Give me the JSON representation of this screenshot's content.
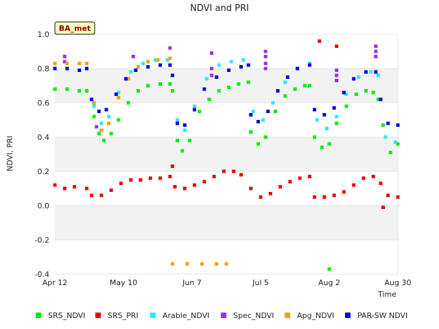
{
  "chart_data": {
    "type": "scatter",
    "title": "NDVI and PRI",
    "badge": "BA_met",
    "xlabel": "Time",
    "ylabel": "NDVI, PRI",
    "x_range": [
      "2024-04-12",
      "2024-08-30"
    ],
    "ylim": [
      -0.4,
      1.0
    ],
    "yticks": [
      -0.4,
      -0.2,
      0.0,
      0.2,
      0.4,
      0.6,
      0.8,
      1.0
    ],
    "ytick_labels": [
      "-0.4",
      "-0.2",
      "0.0",
      "0.2",
      "0.4",
      "0.6",
      "0.8",
      "1.0"
    ],
    "xticks": [
      "2024-04-12",
      "2024-05-10",
      "2024-06-07",
      "2024-07-05",
      "2024-08-02",
      "2024-08-30"
    ],
    "xtick_labels": [
      "Apr 12",
      "May 10",
      "Jun 7",
      "Jul 5",
      "Aug 2",
      "Aug 30"
    ],
    "grid": "horizontal bands",
    "legend_position": "bottom",
    "series": [
      {
        "name": "SRS_NDVI",
        "color": "#00ee00",
        "points": [
          [
            "2024-04-12",
            0.68
          ],
          [
            "2024-04-17",
            0.68
          ],
          [
            "2024-04-22",
            0.67
          ],
          [
            "2024-04-25",
            0.67
          ],
          [
            "2024-04-28",
            0.52
          ],
          [
            "2024-04-30",
            0.42
          ],
          [
            "2024-05-02",
            0.38
          ],
          [
            "2024-05-05",
            0.42
          ],
          [
            "2024-05-08",
            0.5
          ],
          [
            "2024-05-12",
            0.6
          ],
          [
            "2024-05-16",
            0.67
          ],
          [
            "2024-05-20",
            0.7
          ],
          [
            "2024-05-25",
            0.71
          ],
          [
            "2024-05-29",
            0.71
          ],
          [
            "2024-05-30",
            0.67
          ],
          [
            "2024-06-01",
            0.38
          ],
          [
            "2024-06-03",
            0.32
          ],
          [
            "2024-06-06",
            0.38
          ],
          [
            "2024-06-10",
            0.55
          ],
          [
            "2024-06-14",
            0.62
          ],
          [
            "2024-06-18",
            0.67
          ],
          [
            "2024-06-22",
            0.69
          ],
          [
            "2024-06-26",
            0.71
          ],
          [
            "2024-06-30",
            0.72
          ],
          [
            "2024-07-01",
            0.43
          ],
          [
            "2024-07-04",
            0.36
          ],
          [
            "2024-07-07",
            0.4
          ],
          [
            "2024-07-11",
            0.55
          ],
          [
            "2024-07-15",
            0.64
          ],
          [
            "2024-07-19",
            0.68
          ],
          [
            "2024-07-23",
            0.7
          ],
          [
            "2024-07-25",
            0.7
          ],
          [
            "2024-07-27",
            0.4
          ],
          [
            "2024-07-30",
            0.34
          ],
          [
            "2024-08-02",
            0.36
          ],
          [
            "2024-08-05",
            0.48
          ],
          [
            "2024-08-09",
            0.58
          ],
          [
            "2024-08-13",
            0.65
          ],
          [
            "2024-08-17",
            0.67
          ],
          [
            "2024-08-20",
            0.66
          ],
          [
            "2024-08-22",
            0.62
          ],
          [
            "2024-08-24",
            0.47
          ],
          [
            "2024-08-27",
            0.31
          ],
          [
            "2024-08-30",
            0.36
          ],
          [
            "2024-08-02",
            -0.37
          ]
        ]
      },
      {
        "name": "SRS_PRI",
        "color": "#ee0000",
        "points": [
          [
            "2024-04-12",
            0.12
          ],
          [
            "2024-04-16",
            0.1
          ],
          [
            "2024-04-20",
            0.11
          ],
          [
            "2024-04-25",
            0.1
          ],
          [
            "2024-04-27",
            0.06
          ],
          [
            "2024-05-01",
            0.06
          ],
          [
            "2024-05-05",
            0.09
          ],
          [
            "2024-05-09",
            0.13
          ],
          [
            "2024-05-13",
            0.15
          ],
          [
            "2024-05-17",
            0.15
          ],
          [
            "2024-05-21",
            0.16
          ],
          [
            "2024-05-25",
            0.16
          ],
          [
            "2024-05-29",
            0.17
          ],
          [
            "2024-05-30",
            0.23
          ],
          [
            "2024-05-31",
            0.11
          ],
          [
            "2024-06-04",
            0.1
          ],
          [
            "2024-06-08",
            0.12
          ],
          [
            "2024-06-12",
            0.14
          ],
          [
            "2024-06-16",
            0.17
          ],
          [
            "2024-06-20",
            0.2
          ],
          [
            "2024-06-24",
            0.2
          ],
          [
            "2024-06-27",
            0.18
          ],
          [
            "2024-07-01",
            0.1
          ],
          [
            "2024-07-05",
            0.05
          ],
          [
            "2024-07-09",
            0.07
          ],
          [
            "2024-07-13",
            0.11
          ],
          [
            "2024-07-17",
            0.14
          ],
          [
            "2024-07-21",
            0.16
          ],
          [
            "2024-07-25",
            0.17
          ],
          [
            "2024-07-27",
            0.05
          ],
          [
            "2024-07-31",
            0.05
          ],
          [
            "2024-08-04",
            0.06
          ],
          [
            "2024-08-08",
            0.08
          ],
          [
            "2024-08-12",
            0.12
          ],
          [
            "2024-08-16",
            0.16
          ],
          [
            "2024-08-20",
            0.17
          ],
          [
            "2024-08-23",
            0.13
          ],
          [
            "2024-08-24",
            -0.01
          ],
          [
            "2024-08-26",
            0.06
          ],
          [
            "2024-08-30",
            0.05
          ],
          [
            "2024-08-05",
            0.93
          ],
          [
            "2024-07-29",
            0.96
          ]
        ]
      },
      {
        "name": "Arable_NDVI",
        "color": "#22eeff",
        "points": [
          [
            "2024-04-28",
            0.58
          ],
          [
            "2024-05-01",
            0.48
          ],
          [
            "2024-05-04",
            0.52
          ],
          [
            "2024-05-08",
            0.66
          ],
          [
            "2024-05-13",
            0.78
          ],
          [
            "2024-05-18",
            0.83
          ],
          [
            "2024-05-23",
            0.85
          ],
          [
            "2024-05-28",
            0.85
          ],
          [
            "2024-06-01",
            0.5
          ],
          [
            "2024-06-04",
            0.44
          ],
          [
            "2024-06-08",
            0.58
          ],
          [
            "2024-06-13",
            0.74
          ],
          [
            "2024-06-18",
            0.82
          ],
          [
            "2024-06-23",
            0.84
          ],
          [
            "2024-06-28",
            0.85
          ],
          [
            "2024-07-02",
            0.55
          ],
          [
            "2024-07-06",
            0.5
          ],
          [
            "2024-07-10",
            0.6
          ],
          [
            "2024-07-15",
            0.72
          ],
          [
            "2024-07-20",
            0.8
          ],
          [
            "2024-07-25",
            0.83
          ],
          [
            "2024-07-28",
            0.5
          ],
          [
            "2024-08-01",
            0.45
          ],
          [
            "2024-08-05",
            0.52
          ],
          [
            "2024-08-09",
            0.65
          ],
          [
            "2024-08-14",
            0.75
          ],
          [
            "2024-08-19",
            0.78
          ],
          [
            "2024-08-22",
            0.76
          ],
          [
            "2024-08-25",
            0.4
          ],
          [
            "2024-08-29",
            0.37
          ]
        ]
      },
      {
        "name": "Spec_NDVI",
        "color": "#9b30e8",
        "points": [
          [
            "2024-04-16",
            0.87
          ],
          [
            "2024-04-16",
            0.84
          ],
          [
            "2024-04-29",
            0.46
          ],
          [
            "2024-05-14",
            0.87
          ],
          [
            "2024-05-29",
            0.92
          ],
          [
            "2024-06-15",
            0.89
          ],
          [
            "2024-06-15",
            0.8
          ],
          [
            "2024-06-15",
            0.76
          ],
          [
            "2024-07-07",
            0.9
          ],
          [
            "2024-07-07",
            0.87
          ],
          [
            "2024-07-07",
            0.83
          ],
          [
            "2024-07-07",
            0.8
          ],
          [
            "2024-08-05",
            0.79
          ],
          [
            "2024-08-05",
            0.76
          ],
          [
            "2024-08-05",
            0.73
          ],
          [
            "2024-08-21",
            0.93
          ],
          [
            "2024-08-21",
            0.9
          ],
          [
            "2024-08-21",
            0.87
          ]
        ]
      },
      {
        "name": "Apg_NDVI",
        "color": "#f5a000",
        "points": [
          [
            "2024-04-12",
            0.83
          ],
          [
            "2024-04-17",
            0.83
          ],
          [
            "2024-04-22",
            0.83
          ],
          [
            "2024-04-25",
            0.83
          ],
          [
            "2024-04-28",
            0.6
          ],
          [
            "2024-05-01",
            0.44
          ],
          [
            "2024-05-04",
            0.48
          ],
          [
            "2024-05-08",
            0.63
          ],
          [
            "2024-05-12",
            0.74
          ],
          [
            "2024-05-16",
            0.81
          ],
          [
            "2024-05-20",
            0.84
          ],
          [
            "2024-05-24",
            0.85
          ],
          [
            "2024-05-29",
            0.86
          ],
          [
            "2024-05-30",
            -0.34
          ],
          [
            "2024-06-05",
            -0.34
          ],
          [
            "2024-06-11",
            -0.34
          ],
          [
            "2024-06-17",
            -0.34
          ],
          [
            "2024-06-21",
            -0.34
          ]
        ]
      },
      {
        "name": "PAR-SW NDVI",
        "color": "#0000ee",
        "points": [
          [
            "2024-04-12",
            0.8
          ],
          [
            "2024-04-17",
            0.8
          ],
          [
            "2024-04-22",
            0.79
          ],
          [
            "2024-04-25",
            0.8
          ],
          [
            "2024-04-27",
            0.62
          ],
          [
            "2024-04-30",
            0.55
          ],
          [
            "2024-05-03",
            0.56
          ],
          [
            "2024-05-07",
            0.65
          ],
          [
            "2024-05-11",
            0.74
          ],
          [
            "2024-05-15",
            0.79
          ],
          [
            "2024-05-20",
            0.81
          ],
          [
            "2024-05-25",
            0.82
          ],
          [
            "2024-05-29",
            0.82
          ],
          [
            "2024-05-30",
            0.76
          ],
          [
            "2024-06-01",
            0.48
          ],
          [
            "2024-06-04",
            0.47
          ],
          [
            "2024-06-08",
            0.56
          ],
          [
            "2024-06-12",
            0.68
          ],
          [
            "2024-06-17",
            0.75
          ],
          [
            "2024-06-22",
            0.79
          ],
          [
            "2024-06-27",
            0.81
          ],
          [
            "2024-06-30",
            0.82
          ],
          [
            "2024-07-01",
            0.53
          ],
          [
            "2024-07-04",
            0.49
          ],
          [
            "2024-07-08",
            0.55
          ],
          [
            "2024-07-12",
            0.67
          ],
          [
            "2024-07-16",
            0.75
          ],
          [
            "2024-07-20",
            0.8
          ],
          [
            "2024-07-25",
            0.82
          ],
          [
            "2024-07-27",
            0.56
          ],
          [
            "2024-07-31",
            0.53
          ],
          [
            "2024-08-04",
            0.57
          ],
          [
            "2024-08-08",
            0.66
          ],
          [
            "2024-08-12",
            0.74
          ],
          [
            "2024-08-17",
            0.78
          ],
          [
            "2024-08-21",
            0.78
          ],
          [
            "2024-08-23",
            0.62
          ],
          [
            "2024-08-26",
            0.48
          ],
          [
            "2024-08-30",
            0.47
          ]
        ]
      }
    ]
  }
}
